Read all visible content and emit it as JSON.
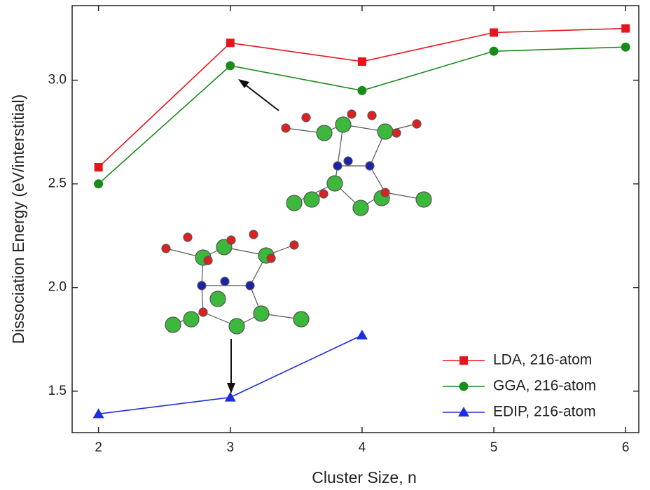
{
  "chart_data": {
    "type": "line",
    "xlabel": "Cluster Size, n",
    "ylabel": "Dissociation Energy (eV/interstitial)",
    "x": [
      2,
      3,
      4,
      5,
      6
    ],
    "series": [
      {
        "name": "LDA, 216-atom",
        "color": "#e8141c",
        "marker": "square",
        "values": [
          2.58,
          3.18,
          3.09,
          3.23,
          3.25
        ]
      },
      {
        "name": "GGA, 216-atom",
        "color": "#1a8a1a",
        "marker": "circle",
        "values": [
          2.5,
          3.07,
          2.95,
          3.14,
          3.16
        ]
      },
      {
        "name": "EDIP, 216-atom",
        "color": "#1f2ee0",
        "marker": "triangle",
        "values": [
          1.39,
          1.47,
          1.77,
          null,
          null
        ]
      }
    ],
    "xlim": [
      1.8,
      6.1
    ],
    "ylim": [
      1.3,
      3.36
    ],
    "xticks": [
      2,
      3,
      4,
      5,
      6
    ],
    "yticks": [
      {
        "value": 1.5,
        "label": "1.5"
      },
      {
        "value": 2.0,
        "label": "2.0"
      },
      {
        "value": 2.5,
        "label": "2.5"
      },
      {
        "value": 3.0,
        "label": "3.0"
      }
    ],
    "legend": "lower right"
  }
}
